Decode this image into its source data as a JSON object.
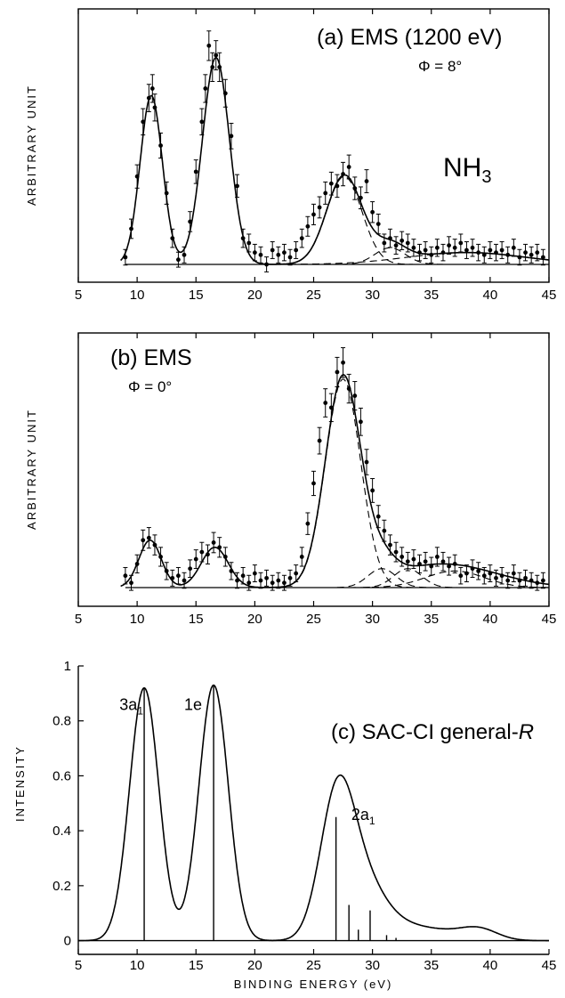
{
  "chart_data": [
    {
      "type": "line",
      "panel": "a",
      "title": "(a) EMS (1200 eV)",
      "angle_label": "Φ = 8°",
      "molecule_label": "NH3",
      "xlabel": "",
      "ylabel": "ARBITRARY UNIT",
      "xlim": [
        5,
        45
      ],
      "xticks": [
        5,
        10,
        15,
        20,
        25,
        30,
        35,
        40,
        45
      ],
      "ylim": [
        -0.08,
        1.08
      ],
      "grid": false,
      "curve_peaks": [
        {
          "center": 11.2,
          "height": 0.71,
          "width": 0.95
        },
        {
          "center": 16.7,
          "height": 0.87,
          "width": 1.15
        },
        {
          "center": 27.6,
          "height": 0.37,
          "width": 1.5
        },
        {
          "center": 31.5,
          "height": 0.07,
          "width": 1.3
        },
        {
          "center": 38.0,
          "height": 0.05,
          "width": 5.0
        }
      ],
      "dashed_components": [
        {
          "center": 27.6,
          "height": 0.37,
          "width": 1.5
        },
        {
          "center": 31.5,
          "height": 0.07,
          "width": 1.3
        },
        {
          "center": 38.0,
          "height": 0.05,
          "width": 5.0
        }
      ],
      "points": {
        "x": [
          9.0,
          9.5,
          10.0,
          10.5,
          11.0,
          11.3,
          11.5,
          12.0,
          12.5,
          13.0,
          13.5,
          14.0,
          14.5,
          15.0,
          15.5,
          15.8,
          16.1,
          16.4,
          16.7,
          17.0,
          17.5,
          18.0,
          18.5,
          19.0,
          19.5,
          20.0,
          20.5,
          21.0,
          21.5,
          22.0,
          22.5,
          23.0,
          23.5,
          24.0,
          24.5,
          25.0,
          25.5,
          26.0,
          26.5,
          27.0,
          27.5,
          28.0,
          28.5,
          29.0,
          29.5,
          30.0,
          30.5,
          31.0,
          31.5,
          32.0,
          32.5,
          33.0,
          33.5,
          34.0,
          34.5,
          35.0,
          35.5,
          36.0,
          36.5,
          37.0,
          37.5,
          38.0,
          38.5,
          39.0,
          39.5,
          40.0,
          40.5,
          41.0,
          41.5,
          42.0,
          42.5,
          43.0,
          43.5,
          44.0,
          44.5
        ],
        "y": [
          0.03,
          0.15,
          0.37,
          0.6,
          0.7,
          0.74,
          0.66,
          0.5,
          0.3,
          0.11,
          0.02,
          0.04,
          0.18,
          0.39,
          0.6,
          0.74,
          0.92,
          0.83,
          0.88,
          0.83,
          0.72,
          0.54,
          0.33,
          0.11,
          0.09,
          0.05,
          0.04,
          0.0,
          0.06,
          0.04,
          0.05,
          0.03,
          0.06,
          0.11,
          0.16,
          0.21,
          0.24,
          0.3,
          0.34,
          0.33,
          0.38,
          0.41,
          0.32,
          0.28,
          0.35,
          0.22,
          0.17,
          0.09,
          0.11,
          0.08,
          0.1,
          0.09,
          0.07,
          0.05,
          0.06,
          0.04,
          0.07,
          0.05,
          0.08,
          0.07,
          0.09,
          0.06,
          0.07,
          0.05,
          0.04,
          0.06,
          0.05,
          0.06,
          0.04,
          0.07,
          0.03,
          0.05,
          0.04,
          0.05,
          0.03
        ]
      }
    },
    {
      "type": "line",
      "panel": "b",
      "title": "(b) EMS",
      "angle_label": "Φ = 0°",
      "xlabel": "",
      "ylabel": "ARBITRARY UNIT",
      "xlim": [
        5,
        45
      ],
      "xticks": [
        5,
        10,
        15,
        20,
        25,
        30,
        35,
        40,
        45
      ],
      "ylim": [
        -0.08,
        1.08
      ],
      "grid": false,
      "curve_peaks": [
        {
          "center": 11.1,
          "height": 0.2,
          "width": 0.95
        },
        {
          "center": 16.6,
          "height": 0.17,
          "width": 1.15
        },
        {
          "center": 27.5,
          "height": 0.88,
          "width": 1.5
        },
        {
          "center": 30.8,
          "height": 0.08,
          "width": 1.2
        },
        {
          "center": 36.0,
          "height": 0.1,
          "width": 4.5
        }
      ],
      "dashed_components": [
        {
          "center": 27.5,
          "height": 0.88,
          "width": 1.5
        },
        {
          "center": 30.8,
          "height": 0.08,
          "width": 1.2
        },
        {
          "center": 33.0,
          "height": 0.08,
          "width": 1.2
        },
        {
          "center": 37.0,
          "height": 0.07,
          "width": 2.5
        }
      ],
      "points": {
        "x": [
          9.0,
          9.5,
          10.0,
          10.5,
          11.0,
          11.5,
          12.0,
          12.5,
          13.0,
          13.5,
          14.0,
          14.5,
          15.0,
          15.5,
          16.0,
          16.5,
          17.0,
          17.5,
          18.0,
          18.5,
          19.0,
          19.5,
          20.0,
          20.5,
          21.0,
          21.5,
          22.0,
          22.5,
          23.0,
          23.5,
          24.0,
          24.5,
          25.0,
          25.5,
          26.0,
          26.5,
          27.0,
          27.5,
          28.0,
          28.5,
          29.0,
          29.5,
          30.0,
          30.5,
          31.0,
          31.5,
          32.0,
          32.5,
          33.0,
          33.5,
          34.0,
          34.5,
          35.0,
          35.5,
          36.0,
          36.5,
          37.0,
          37.5,
          38.0,
          38.5,
          39.0,
          39.5,
          40.0,
          40.5,
          41.0,
          41.5,
          42.0,
          42.5,
          43.0,
          43.5,
          44.0,
          44.5
        ],
        "y": [
          0.05,
          0.02,
          0.1,
          0.2,
          0.21,
          0.18,
          0.13,
          0.07,
          0.04,
          0.05,
          0.03,
          0.08,
          0.12,
          0.15,
          0.14,
          0.19,
          0.17,
          0.13,
          0.07,
          0.03,
          0.05,
          0.02,
          0.06,
          0.03,
          0.04,
          0.02,
          0.03,
          0.02,
          0.04,
          0.06,
          0.13,
          0.27,
          0.44,
          0.62,
          0.78,
          0.76,
          0.91,
          0.95,
          0.84,
          0.81,
          0.7,
          0.53,
          0.41,
          0.3,
          0.24,
          0.18,
          0.15,
          0.13,
          0.11,
          0.12,
          0.1,
          0.11,
          0.09,
          0.13,
          0.11,
          0.09,
          0.1,
          0.05,
          0.06,
          0.08,
          0.07,
          0.05,
          0.06,
          0.04,
          0.05,
          0.03,
          0.06,
          0.03,
          0.04,
          0.03,
          0.02,
          0.03
        ]
      }
    },
    {
      "type": "line",
      "panel": "c",
      "title": "(c) SAC-CI general-R",
      "xlabel": "BINDING ENERGY (eV)",
      "ylabel": "INTENSITY",
      "xlim": [
        5,
        45
      ],
      "xticks": [
        5,
        10,
        15,
        20,
        25,
        30,
        35,
        40,
        45
      ],
      "ylim": [
        -0.05,
        1.0
      ],
      "yticks": [
        0,
        0.2,
        0.4,
        0.6,
        0.8,
        1
      ],
      "grid": false,
      "peak_labels": [
        {
          "text": "3a",
          "sub": "1",
          "x": 8.5,
          "y": 0.84
        },
        {
          "text": "1e",
          "sub": "",
          "x": 14.0,
          "y": 0.84
        },
        {
          "text": "2a",
          "sub": "1",
          "x": 28.2,
          "y": 0.44
        }
      ],
      "sticks": {
        "x": [
          10.6,
          16.5,
          26.9,
          28.0,
          28.8,
          29.8,
          31.2,
          32.0
        ],
        "y": [
          0.92,
          0.93,
          0.45,
          0.13,
          0.04,
          0.11,
          0.02,
          0.01
        ]
      },
      "envelope_components": [
        {
          "center": 10.6,
          "height": 0.92,
          "width": 1.25
        },
        {
          "center": 16.5,
          "height": 0.93,
          "width": 1.25
        },
        {
          "center": 27.0,
          "height": 0.52,
          "width": 1.45
        },
        {
          "center": 29.3,
          "height": 0.18,
          "width": 1.7
        },
        {
          "center": 32.0,
          "height": 0.05,
          "width": 2.0
        },
        {
          "center": 35.5,
          "height": 0.03,
          "width": 2.0
        },
        {
          "center": 39.0,
          "height": 0.043,
          "width": 1.6
        }
      ]
    }
  ]
}
